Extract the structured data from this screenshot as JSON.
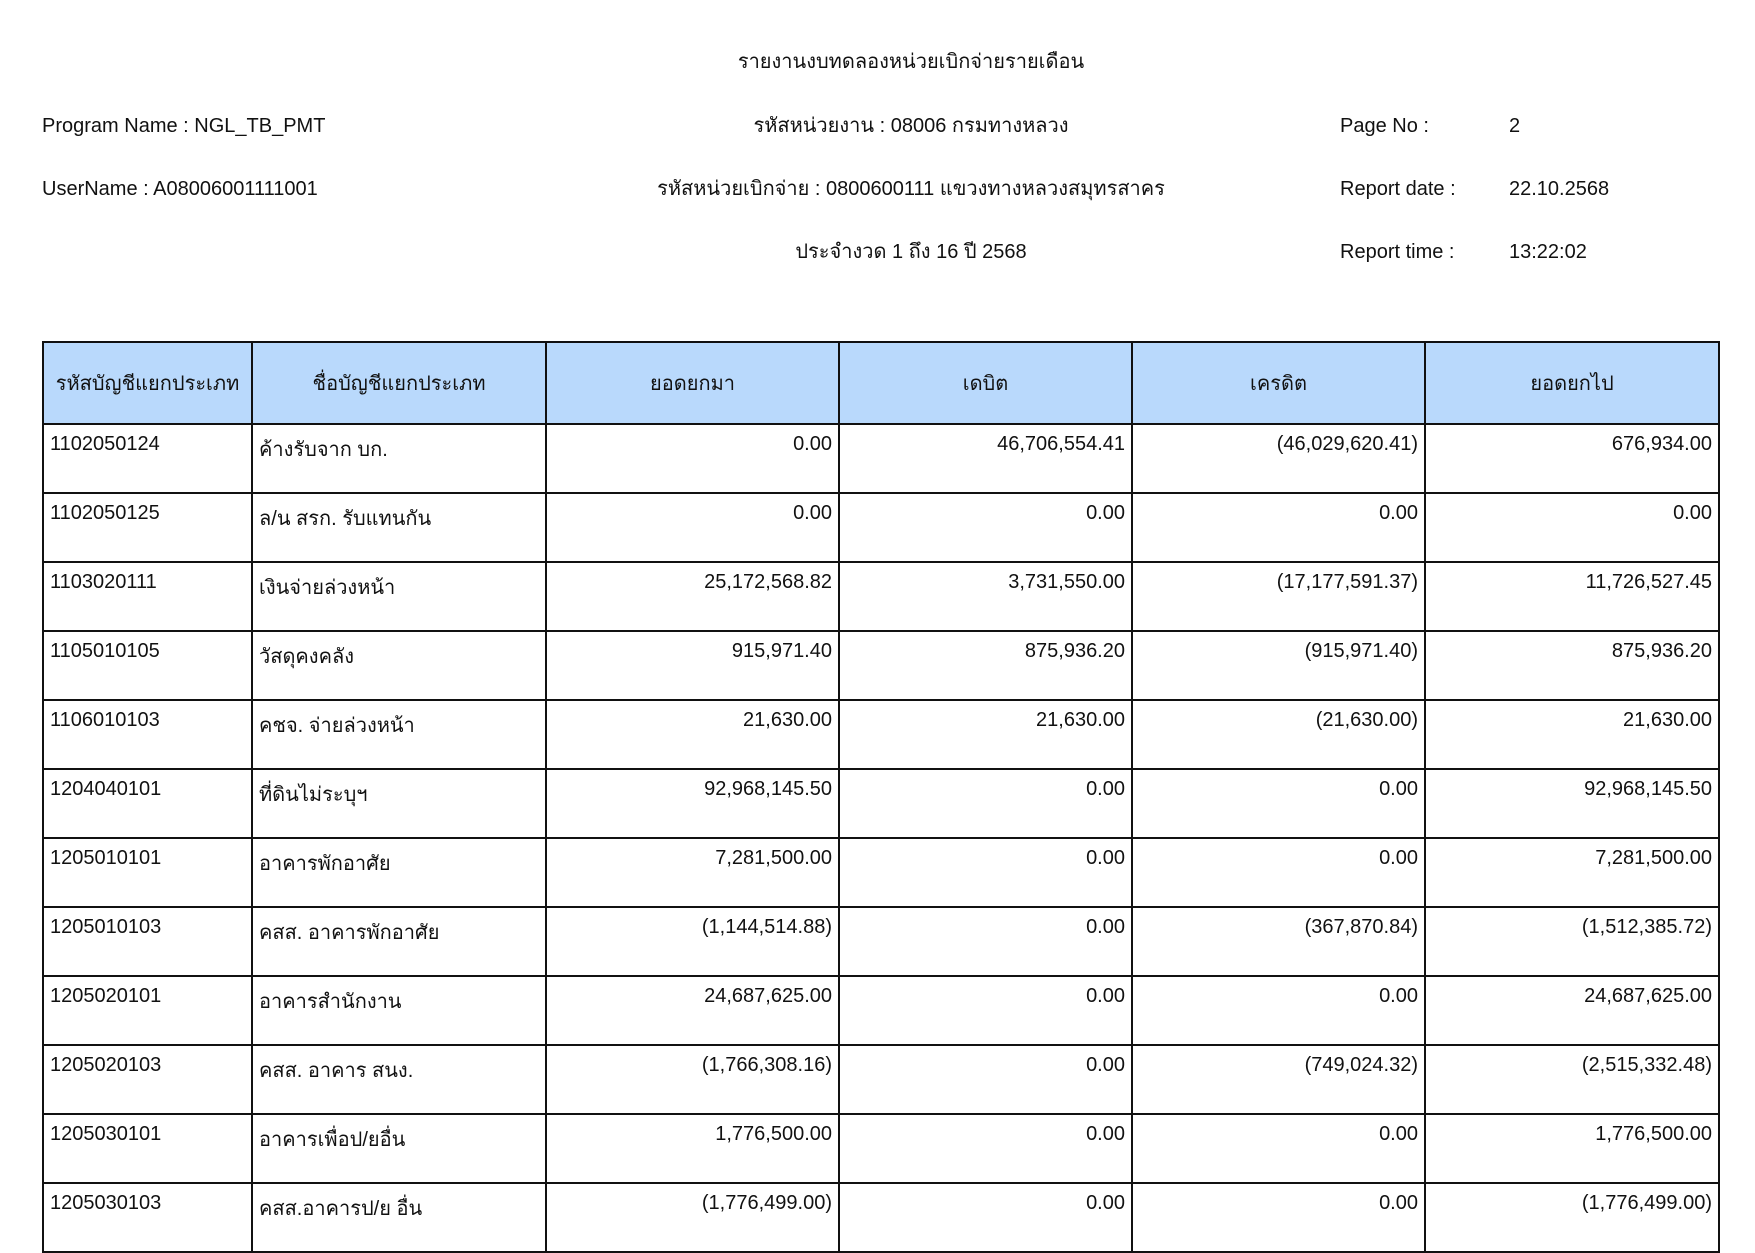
{
  "header": {
    "title": "รายงานงบทดลองหน่วยเบิกจ่ายรายเดือน",
    "program_name": "Program Name : NGL_TB_PMT",
    "username": "UserName : A08006001111001",
    "agency": "รหัสหน่วยงาน : 08006 กรมทางหลวง",
    "disbursing_unit": "รหัสหน่วยเบิกจ่าย : 0800600111 แขวงทางหลวงสมุทรสาคร",
    "period": "ประจำงวด 1 ถึง 16 ปี 2568",
    "page_no_label": "Page No :",
    "page_no": "2",
    "report_date_label": "Report date :",
    "report_date": "22.10.2568",
    "report_time_label": "Report time :",
    "report_time": "13:22:02"
  },
  "table": {
    "header_color": "#b9d9fc",
    "columns": [
      "รหัสบัญชีแยกประเภท",
      "ชื่อบัญชีแยกประเภท",
      "ยอดยกมา",
      "เดบิต",
      "เครดิต",
      "ยอดยกไป"
    ],
    "rows": [
      [
        "1102050124",
        "ค้างรับจาก บก.",
        "0.00",
        "46,706,554.41",
        "(46,029,620.41)",
        "676,934.00"
      ],
      [
        "1102050125",
        "ล/น สรก. รับแทนกัน",
        "0.00",
        "0.00",
        "0.00",
        "0.00"
      ],
      [
        "1103020111",
        "เงินจ่ายล่วงหน้า",
        "25,172,568.82",
        "3,731,550.00",
        "(17,177,591.37)",
        "11,726,527.45"
      ],
      [
        "1105010105",
        "วัสดุคงคลัง",
        "915,971.40",
        "875,936.20",
        "(915,971.40)",
        "875,936.20"
      ],
      [
        "1106010103",
        "คชจ. จ่ายล่วงหน้า",
        "21,630.00",
        "21,630.00",
        "(21,630.00)",
        "21,630.00"
      ],
      [
        "1204040101",
        "ที่ดินไม่ระบุฯ",
        "92,968,145.50",
        "0.00",
        "0.00",
        "92,968,145.50"
      ],
      [
        "1205010101",
        "อาคารพักอาศัย",
        "7,281,500.00",
        "0.00",
        "0.00",
        "7,281,500.00"
      ],
      [
        "1205010103",
        "คสส. อาคารพักอาศัย",
        "(1,144,514.88)",
        "0.00",
        "(367,870.84)",
        "(1,512,385.72)"
      ],
      [
        "1205020101",
        "อาคารสำนักงาน",
        "24,687,625.00",
        "0.00",
        "0.00",
        "24,687,625.00"
      ],
      [
        "1205020103",
        "คสส. อาคาร สนง.",
        "(1,766,308.16)",
        "0.00",
        "(749,024.32)",
        "(2,515,332.48)"
      ],
      [
        "1205030101",
        "อาคารเพื่อป/ยอื่น",
        "1,776,500.00",
        "0.00",
        "0.00",
        "1,776,500.00"
      ],
      [
        "1205030103",
        "คสส.อาคารป/ย อื่น",
        "(1,776,499.00)",
        "0.00",
        "0.00",
        "(1,776,499.00)"
      ]
    ]
  }
}
